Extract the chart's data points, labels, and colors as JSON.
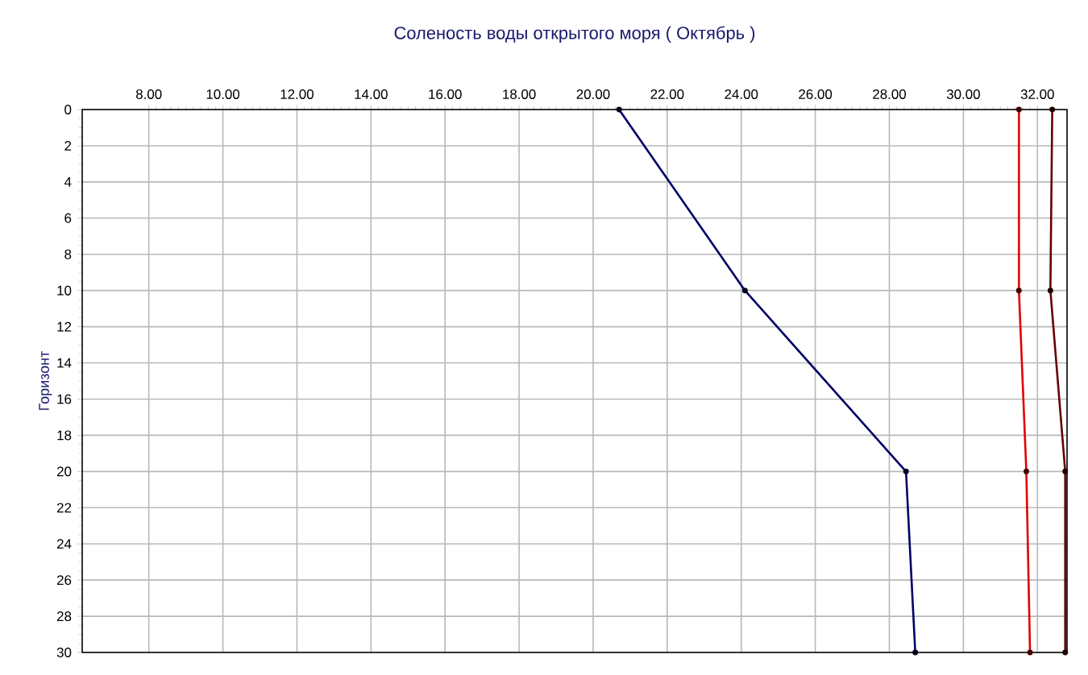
{
  "chart_data": {
    "type": "line",
    "title": "Соленость воды открытого моря    ( Октябрь )",
    "ylabel": "Горизонт",
    "x": [
      0,
      10,
      20,
      30
    ],
    "series": [
      {
        "color": "#000066",
        "values": [
          20.7,
          24.1,
          28.45,
          28.7
        ]
      },
      {
        "color": "#e00000",
        "values": [
          31.5,
          31.5,
          31.7,
          31.8
        ]
      },
      {
        "color": "#660000",
        "values": [
          32.4,
          32.35,
          32.75,
          32.75
        ]
      }
    ],
    "orientation": "horizontal",
    "xlim": [
      6.2,
      32.8
    ],
    "xticks": [
      {
        "value": 8,
        "label": "8.00"
      },
      {
        "value": 10,
        "label": "10.00"
      },
      {
        "value": 12,
        "label": "12.00"
      },
      {
        "value": 14,
        "label": "14.00"
      },
      {
        "value": 16,
        "label": "16.00"
      },
      {
        "value": 18,
        "label": "18.00"
      },
      {
        "value": 20,
        "label": "20.00"
      },
      {
        "value": 22,
        "label": "22.00"
      },
      {
        "value": 24,
        "label": "24.00"
      },
      {
        "value": 26,
        "label": "26.00"
      },
      {
        "value": 28,
        "label": "28.00"
      },
      {
        "value": 30,
        "label": "30.00"
      },
      {
        "value": 32,
        "label": "32.00"
      }
    ],
    "ylim": [
      30,
      0
    ],
    "yticks": [
      0,
      2,
      4,
      6,
      8,
      10,
      12,
      14,
      16,
      18,
      20,
      22,
      24,
      26,
      28,
      30
    ],
    "grid": true,
    "marker": "circle",
    "line_style": "solid"
  }
}
